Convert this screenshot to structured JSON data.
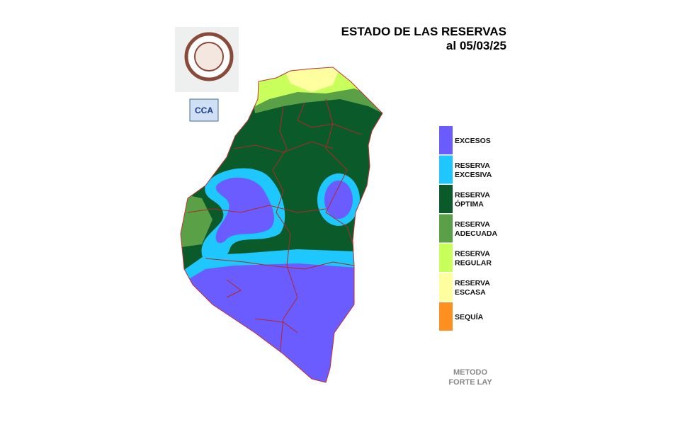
{
  "header": {
    "title": "ESTADO DE LAS RESERVAS",
    "date": "al 05/03/25"
  },
  "logos": {
    "cca": "CCA"
  },
  "legend": [
    {
      "lines": [
        "EXCESOS"
      ],
      "color": "#6a5cff"
    },
    {
      "lines": [
        "RESERVA",
        "EXCESIVA"
      ],
      "color": "#1ec8ff"
    },
    {
      "lines": [
        "RESERVA",
        "ÓPTIMA"
      ],
      "color": "#0b5a2a"
    },
    {
      "lines": [
        "RESERVA",
        "ADECUADA"
      ],
      "color": "#5aa046"
    },
    {
      "lines": [
        "RESERVA",
        "REGULAR"
      ],
      "color": "#c8ff5a"
    },
    {
      "lines": [
        "RESERVA",
        "ESCASA"
      ],
      "color": "#ffffa0"
    },
    {
      "lines": [
        "SEQUÍA"
      ],
      "color": "#ff9020"
    }
  ],
  "method": [
    "METODO",
    "FORTE LAY"
  ]
}
